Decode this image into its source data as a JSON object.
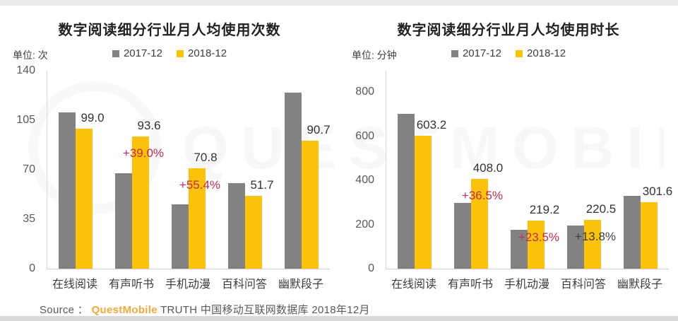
{
  "watermark": {
    "text": "QUESTMOBILE"
  },
  "source": {
    "prefix": "Source ： ",
    "brand": "QuestMobile",
    "suffix": " TRUTH 中国移动互联网数据库 2018年12月"
  },
  "colors": {
    "bar_2017": "#828282",
    "bar_2018": "#FAC20A",
    "percent_red": "#C22A52",
    "percent_dark": "#3d3d3d",
    "axis_text": "#595959",
    "value_text": "#333333"
  },
  "chart_data": [
    {
      "type": "bar",
      "title": "数字阅读细分行业月人均使用次数",
      "unit": "单位: 次",
      "ylabel": "次",
      "legend_position": "top",
      "grid": false,
      "categories": [
        "在线阅读",
        "有声听书",
        "手机动漫",
        "百科问答",
        "幽默段子"
      ],
      "series": [
        {
          "name": "2017-12",
          "values": [
            110.5,
            67.3,
            45.6,
            60.5,
            124.5
          ]
        },
        {
          "name": "2018-12",
          "values": [
            99.0,
            93.6,
            70.8,
            51.7,
            90.7
          ]
        }
      ],
      "value_labels": [
        "99.0",
        "93.6",
        "70.8",
        "51.7",
        "90.7"
      ],
      "percent_labels": [
        "",
        "+39.0%",
        "+55.4%",
        "",
        ""
      ],
      "percent_styles": [
        "",
        "red",
        "red",
        "",
        ""
      ],
      "ylim": [
        0,
        140
      ],
      "y_ticks": [
        0,
        35,
        70,
        105,
        140
      ],
      "y_top_value": 140
    },
    {
      "type": "bar",
      "title": "数字阅读细分行业月人均使用时长",
      "unit": "单位: 分钟",
      "ylabel": "分钟",
      "legend_position": "top",
      "grid": false,
      "categories": [
        "在线阅读",
        "有声听书",
        "手机动漫",
        "百科问答",
        "幽默段子"
      ],
      "series": [
        {
          "name": "2017-12",
          "values": [
            700,
            299,
            177.5,
            193.8,
            330
          ]
        },
        {
          "name": "2018-12",
          "values": [
            603.2,
            408.0,
            219.2,
            220.5,
            301.6
          ]
        }
      ],
      "value_labels": [
        "603.2",
        "408.0",
        "219.2",
        "220.5",
        "301.6"
      ],
      "percent_labels": [
        "",
        "+36.5%",
        "+23.5%",
        "+13.8%",
        ""
      ],
      "percent_styles": [
        "",
        "red",
        "red",
        "dark",
        ""
      ],
      "ylim": [
        0,
        800
      ],
      "y_ticks": [
        0,
        200,
        400,
        600,
        800
      ],
      "y_top_value": 896
    }
  ]
}
